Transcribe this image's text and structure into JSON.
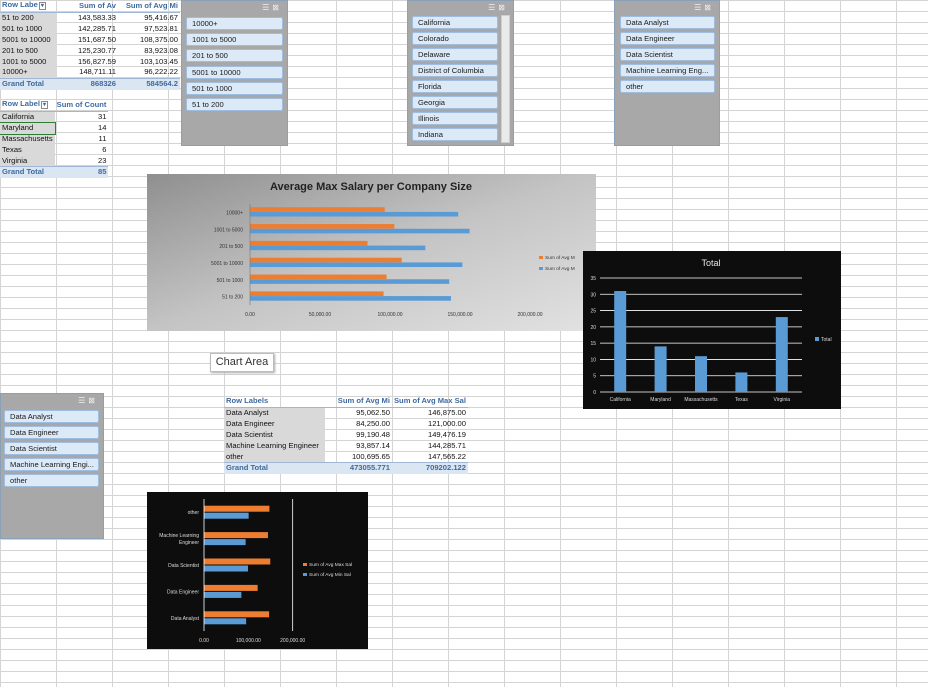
{
  "pivot_size": {
    "headers": [
      "Row Labe",
      "Sum of Av",
      "Sum of Avg Mi"
    ],
    "rows": [
      [
        "51 to 200",
        "143,583.33",
        "95,416.67"
      ],
      [
        "501 to 1000",
        "142,285.71",
        "97,523.81"
      ],
      [
        "5001 to 10000",
        "151,687.50",
        "108,375.00"
      ],
      [
        "201 to 500",
        "125,230.77",
        "83,923.08"
      ],
      [
        "1001 to 5000",
        "156,827.59",
        "103,103.45"
      ],
      [
        "10000+",
        "148,711.11",
        "96,222.22"
      ]
    ],
    "total": [
      "Grand Total",
      "868326",
      "584564.2"
    ]
  },
  "pivot_state": {
    "headers": [
      "Row Label",
      "Sum of Count"
    ],
    "rows": [
      [
        "California",
        "31"
      ],
      [
        "Maryland",
        "14"
      ],
      [
        "Massachusetts",
        "11"
      ],
      [
        "Texas",
        "6"
      ],
      [
        "Virginia",
        "23"
      ]
    ],
    "total": [
      "Grand Total",
      "85"
    ]
  },
  "pivot_title": {
    "headers": [
      "Row Labels",
      "Sum of Avg Mi",
      "Sum of Avg Max Sal"
    ],
    "rows": [
      [
        "Data Analyst",
        "95,062.50",
        "146,875.00"
      ],
      [
        "Data Engineer",
        "84,250.00",
        "121,000.00"
      ],
      [
        "Data Scientist",
        "99,190.48",
        "149,476.19"
      ],
      [
        "Machine Learning Engineer",
        "93,857.14",
        "144,285.71"
      ],
      [
        "other",
        "100,695.65",
        "147,565.22"
      ]
    ],
    "total": [
      "Grand Total",
      "473055.771",
      "709202.122"
    ]
  },
  "slicer_size": {
    "items": [
      "10000+",
      "1001 to 5000",
      "201 to 500",
      "5001 to 10000",
      "501 to 1000",
      "51 to 200"
    ]
  },
  "slicer_state": {
    "items": [
      "California",
      "Colorado",
      "Delaware",
      "District of Columbia",
      "Florida",
      "Georgia",
      "Illinois",
      "Indiana"
    ]
  },
  "slicer_title_top": {
    "items": [
      "Data Analyst",
      "Data Engineer",
      "Data Scientist",
      "Machine Learning Eng...",
      "other"
    ]
  },
  "slicer_title_left": {
    "items": [
      "Data Analyst",
      "Data Engineer",
      "Data Scientist",
      "Machine Learning Engi...",
      "other"
    ]
  },
  "slicer_icons": {
    "filter": "multi-select-icon",
    "clear": "clear-filter-icon"
  },
  "chart_area_tooltip": "Chart Area",
  "colors": {
    "orange": "#ed7d31",
    "blue": "#5b9bd5",
    "dark_bg": "#0d0d0d",
    "gray_bg": "#bfbfbf"
  },
  "chart_data": [
    {
      "type": "bar",
      "orientation": "horizontal",
      "title": "Average Max Salary per Company Size",
      "categories": [
        "51 to 200",
        "501 to 1000",
        "5001 to 10000",
        "201 to 500",
        "1001 to 5000",
        "10000+"
      ],
      "series": [
        {
          "name": "Sum of Avg M",
          "color": "#5b9bd5",
          "values": [
            143583.33,
            142285.71,
            151687.5,
            125230.77,
            156827.59,
            148711.11
          ]
        },
        {
          "name": "Sum of Avg M",
          "color": "#ed7d31",
          "values": [
            95416.67,
            97523.81,
            108375.0,
            83923.08,
            103103.45,
            96222.22
          ]
        }
      ],
      "xticks": [
        "0.00",
        "50,000.00",
        "100,000.00",
        "150,000.00",
        "200,000.00"
      ],
      "xlim": [
        0,
        200000
      ],
      "legend": "right"
    },
    {
      "type": "bar",
      "orientation": "vertical",
      "title": "Total",
      "categories": [
        "California",
        "Maryland",
        "Massachusetts",
        "Texas",
        "Virginia"
      ],
      "series": [
        {
          "name": "Total",
          "color": "#5b9bd5",
          "values": [
            31,
            14,
            11,
            6,
            23
          ]
        }
      ],
      "yticks": [
        "0",
        "5",
        "10",
        "15",
        "20",
        "25",
        "30",
        "35"
      ],
      "ylim": [
        0,
        35
      ],
      "grid": true,
      "legend": "right"
    },
    {
      "type": "bar",
      "orientation": "horizontal",
      "title": "",
      "categories": [
        "Data Analyst",
        "Data Engineer",
        "Data Scientist",
        "Machine Learning Engineer",
        "other"
      ],
      "series": [
        {
          "name": "Sum of Avg Min Sal",
          "color": "#5b9bd5",
          "values": [
            95062.5,
            84250.0,
            99190.48,
            93857.14,
            100695.65
          ]
        },
        {
          "name": "Sum of Avg Max Sal",
          "color": "#ed7d31",
          "values": [
            146875.0,
            121000.0,
            149476.19,
            144285.71,
            147565.22
          ]
        }
      ],
      "xticks": [
        "0.00",
        "100,000.00",
        "200,000.00"
      ],
      "xlim": [
        0,
        300000
      ],
      "legend": "right"
    }
  ]
}
